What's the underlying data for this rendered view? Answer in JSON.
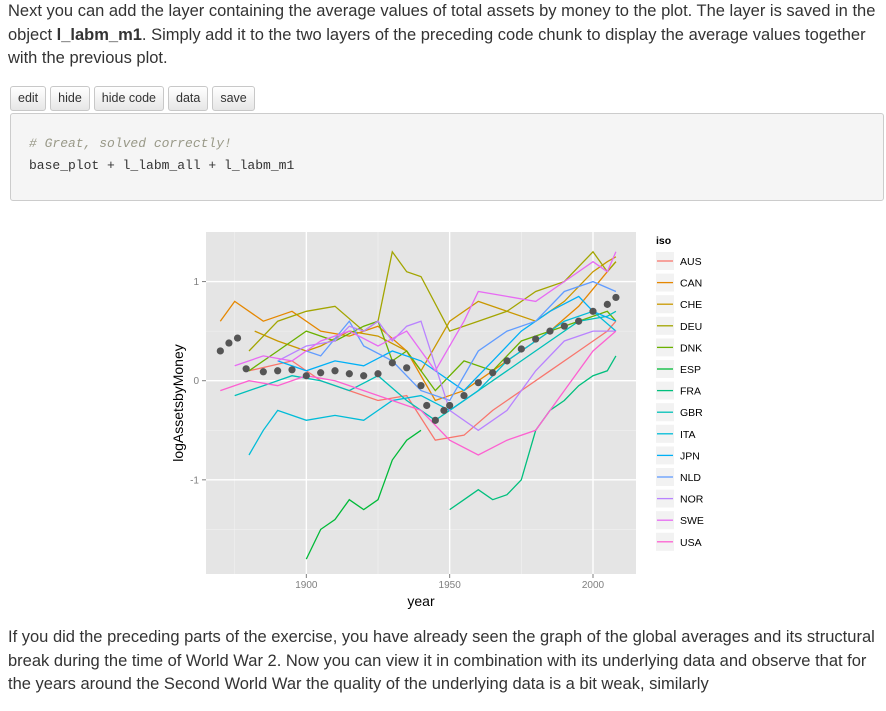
{
  "intro": {
    "before": "Next you can add the layer containing the average values of total assets by money to the plot. The layer is saved in the object ",
    "object_name": "l_labm_m1",
    "after": ". Simply add it to the two layers of the preceding code chunk to display the average values together with the previous plot."
  },
  "toolbar": {
    "edit": "edit",
    "hide": "hide",
    "hide_code": "hide code",
    "data": "data",
    "save": "save"
  },
  "code": {
    "comment": "# Great, solved correctly!",
    "line": "base_plot + l_labm_all + l_labm_m1"
  },
  "outro": {
    "text": "If you did the preceding parts of the exercise, you have already seen the graph of the global averages and its structural break during the time of World War 2. Now you can view it in combination with its underlying data and observe that for the years around the Second World War the quality of the underlying data is a bit weak, similarly"
  },
  "chart_data": {
    "type": "line",
    "xlabel": "year",
    "ylabel": "logAssetsbyMoney",
    "xlim": [
      1865,
      2015
    ],
    "ylim": [
      -1.95,
      1.5
    ],
    "x_ticks": [
      1900,
      1950,
      2000
    ],
    "y_ticks": [
      -1,
      0,
      1
    ],
    "grid": true,
    "background": "#e5e5e5",
    "legend": {
      "title": "iso",
      "position": "right"
    },
    "series": [
      {
        "name": "AUS",
        "color": "#F8766D",
        "points": [
          [
            1880,
            0.1
          ],
          [
            1895,
            0.2
          ],
          [
            1905,
            0.0
          ],
          [
            1915,
            -0.1
          ],
          [
            1925,
            -0.2
          ],
          [
            1935,
            -0.15
          ],
          [
            1945,
            -0.6
          ],
          [
            1955,
            -0.55
          ],
          [
            1965,
            -0.3
          ],
          [
            1975,
            -0.1
          ],
          [
            1985,
            0.1
          ],
          [
            1995,
            0.3
          ],
          [
            2005,
            0.5
          ],
          [
            2008,
            0.6
          ]
        ]
      },
      {
        "name": "CAN",
        "color": "#E58700",
        "points": [
          [
            1870,
            0.6
          ],
          [
            1875,
            0.8
          ],
          [
            1885,
            0.6
          ],
          [
            1895,
            0.7
          ],
          [
            1905,
            0.5
          ],
          [
            1915,
            0.45
          ],
          [
            1925,
            0.55
          ],
          [
            1935,
            0.3
          ],
          [
            1945,
            -0.2
          ],
          [
            1955,
            -0.1
          ],
          [
            1965,
            0.1
          ],
          [
            1975,
            0.3
          ],
          [
            1985,
            0.5
          ],
          [
            1995,
            0.75
          ],
          [
            2005,
            1.1
          ],
          [
            2008,
            1.2
          ]
        ]
      },
      {
        "name": "CHE",
        "color": "#C99800",
        "points": [
          [
            1882,
            0.5
          ],
          [
            1890,
            0.4
          ],
          [
            1900,
            0.3
          ],
          [
            1905,
            0.35
          ],
          [
            1915,
            0.5
          ],
          [
            1925,
            0.45
          ],
          [
            1935,
            0.3
          ],
          [
            1940,
            0.1
          ],
          [
            1950,
            0.6
          ],
          [
            1960,
            0.8
          ],
          [
            1970,
            0.7
          ],
          [
            1980,
            0.6
          ],
          [
            1990,
            0.8
          ],
          [
            2000,
            1.1
          ],
          [
            2005,
            1.2
          ],
          [
            2008,
            1.25
          ]
        ]
      },
      {
        "name": "DEU",
        "color": "#A3A500",
        "points": [
          [
            1880,
            0.3
          ],
          [
            1890,
            0.6
          ],
          [
            1900,
            0.7
          ],
          [
            1910,
            0.75
          ],
          [
            1920,
            0.5
          ],
          [
            1925,
            0.6
          ],
          [
            1930,
            1.3
          ],
          [
            1935,
            1.1
          ],
          [
            1940,
            1.05
          ],
          [
            1950,
            0.5
          ],
          [
            1960,
            0.6
          ],
          [
            1970,
            0.7
          ],
          [
            1980,
            0.9
          ],
          [
            1990,
            1.0
          ],
          [
            2000,
            1.3
          ],
          [
            2005,
            1.1
          ],
          [
            2008,
            1.2
          ]
        ]
      },
      {
        "name": "DNK",
        "color": "#6BB100",
        "points": [
          [
            1880,
            0.1
          ],
          [
            1890,
            0.3
          ],
          [
            1900,
            0.5
          ],
          [
            1910,
            0.4
          ],
          [
            1920,
            0.55
          ],
          [
            1925,
            0.6
          ],
          [
            1930,
            0.2
          ],
          [
            1935,
            0.3
          ],
          [
            1945,
            -0.1
          ],
          [
            1955,
            0.2
          ],
          [
            1965,
            0.1
          ],
          [
            1975,
            0.4
          ],
          [
            1985,
            0.5
          ],
          [
            1995,
            0.6
          ],
          [
            2005,
            0.7
          ],
          [
            2008,
            0.6
          ]
        ]
      },
      {
        "name": "ESP",
        "color": "#00BA38",
        "points": [
          [
            1900,
            -1.8
          ],
          [
            1905,
            -1.5
          ],
          [
            1910,
            -1.4
          ],
          [
            1915,
            -1.2
          ],
          [
            1920,
            -1.3
          ],
          [
            1925,
            -1.2
          ],
          [
            1930,
            -0.8
          ],
          [
            1935,
            -0.6
          ],
          [
            1940,
            -0.5
          ]
        ]
      },
      {
        "name": "FRA",
        "color": "#00BF7D",
        "points": [
          [
            1950,
            -1.3
          ],
          [
            1955,
            -1.2
          ],
          [
            1960,
            -1.1
          ],
          [
            1965,
            -1.2
          ],
          [
            1970,
            -1.15
          ],
          [
            1975,
            -1.0
          ],
          [
            1980,
            -0.5
          ],
          [
            1985,
            -0.3
          ],
          [
            1990,
            -0.2
          ],
          [
            1995,
            -0.05
          ],
          [
            2000,
            0.05
          ],
          [
            2005,
            0.1
          ],
          [
            2008,
            0.25
          ]
        ]
      },
      {
        "name": "GBR",
        "color": "#00C0B8",
        "points": [
          [
            1875,
            -0.15
          ],
          [
            1885,
            -0.05
          ],
          [
            1895,
            0.05
          ],
          [
            1905,
            0.0
          ],
          [
            1915,
            -0.1
          ],
          [
            1925,
            0.05
          ],
          [
            1935,
            -0.2
          ],
          [
            1945,
            -0.4
          ],
          [
            1955,
            -0.2
          ],
          [
            1965,
            0.0
          ],
          [
            1975,
            0.2
          ],
          [
            1985,
            0.4
          ],
          [
            1995,
            0.6
          ],
          [
            2005,
            0.65
          ],
          [
            2008,
            0.7
          ]
        ]
      },
      {
        "name": "ITA",
        "color": "#00BCD8",
        "points": [
          [
            1880,
            -0.75
          ],
          [
            1885,
            -0.5
          ],
          [
            1890,
            -0.3
          ],
          [
            1900,
            -0.4
          ],
          [
            1910,
            -0.35
          ],
          [
            1920,
            -0.4
          ],
          [
            1930,
            -0.2
          ],
          [
            1940,
            -0.15
          ],
          [
            1950,
            -0.3
          ],
          [
            1960,
            -0.1
          ],
          [
            1970,
            0.2
          ],
          [
            1980,
            0.4
          ],
          [
            1990,
            0.6
          ],
          [
            2000,
            0.7
          ],
          [
            2008,
            0.5
          ]
        ]
      },
      {
        "name": "JPN",
        "color": "#00B0F6",
        "points": [
          [
            1890,
            0.2
          ],
          [
            1900,
            0.1
          ],
          [
            1910,
            0.2
          ],
          [
            1920,
            0.15
          ],
          [
            1930,
            0.3
          ],
          [
            1940,
            0.2
          ],
          [
            1955,
            -0.1
          ],
          [
            1965,
            0.2
          ],
          [
            1975,
            0.5
          ],
          [
            1985,
            0.7
          ],
          [
            1995,
            0.85
          ],
          [
            2000,
            0.7
          ],
          [
            2008,
            0.6
          ]
        ]
      },
      {
        "name": "NLD",
        "color": "#619CFF",
        "points": [
          [
            1900,
            0.3
          ],
          [
            1905,
            0.25
          ],
          [
            1915,
            0.6
          ],
          [
            1920,
            0.35
          ],
          [
            1930,
            0.2
          ],
          [
            1940,
            -0.1
          ],
          [
            1950,
            -0.2
          ],
          [
            1960,
            0.3
          ],
          [
            1970,
            0.5
          ],
          [
            1980,
            0.6
          ],
          [
            1990,
            0.9
          ],
          [
            2000,
            1.0
          ],
          [
            2008,
            0.9
          ]
        ]
      },
      {
        "name": "NOR",
        "color": "#B983FF",
        "points": [
          [
            1890,
            0.2
          ],
          [
            1900,
            0.35
          ],
          [
            1910,
            0.4
          ],
          [
            1915,
            0.55
          ],
          [
            1920,
            0.5
          ],
          [
            1925,
            0.6
          ],
          [
            1930,
            0.4
          ],
          [
            1935,
            0.55
          ],
          [
            1940,
            0.6
          ],
          [
            1950,
            -0.3
          ],
          [
            1960,
            -0.5
          ],
          [
            1970,
            -0.3
          ],
          [
            1980,
            0.1
          ],
          [
            1990,
            0.4
          ],
          [
            2000,
            0.5
          ],
          [
            2008,
            0.5
          ]
        ]
      },
      {
        "name": "SWE",
        "color": "#E76BF3",
        "points": [
          [
            1875,
            0.15
          ],
          [
            1885,
            0.25
          ],
          [
            1895,
            0.2
          ],
          [
            1905,
            0.4
          ],
          [
            1915,
            0.5
          ],
          [
            1925,
            0.35
          ],
          [
            1935,
            0.5
          ],
          [
            1945,
            0.1
          ],
          [
            1955,
            0.6
          ],
          [
            1960,
            0.9
          ],
          [
            1970,
            0.85
          ],
          [
            1980,
            0.8
          ],
          [
            1990,
            1.0
          ],
          [
            2000,
            1.2
          ],
          [
            2005,
            1.1
          ],
          [
            2008,
            1.3
          ]
        ]
      },
      {
        "name": "USA",
        "color": "#FD61D1",
        "points": [
          [
            1870,
            -0.1
          ],
          [
            1880,
            0.0
          ],
          [
            1890,
            -0.05
          ],
          [
            1900,
            0.05
          ],
          [
            1910,
            0.0
          ],
          [
            1920,
            -0.1
          ],
          [
            1930,
            -0.2
          ],
          [
            1940,
            -0.3
          ],
          [
            1950,
            -0.6
          ],
          [
            1960,
            -0.75
          ],
          [
            1970,
            -0.6
          ],
          [
            1980,
            -0.5
          ],
          [
            1990,
            -0.1
          ],
          [
            2000,
            0.3
          ],
          [
            2008,
            0.5
          ]
        ]
      }
    ],
    "average": {
      "color": "#555555",
      "points": [
        [
          1870,
          0.3
        ],
        [
          1873,
          0.38
        ],
        [
          1876,
          0.43
        ],
        [
          1879,
          0.12
        ],
        [
          1885,
          0.09
        ],
        [
          1890,
          0.1
        ],
        [
          1895,
          0.11
        ],
        [
          1900,
          0.05
        ],
        [
          1905,
          0.08
        ],
        [
          1910,
          0.1
        ],
        [
          1915,
          0.07
        ],
        [
          1920,
          0.05
        ],
        [
          1925,
          0.07
        ],
        [
          1930,
          0.18
        ],
        [
          1935,
          0.13
        ],
        [
          1940,
          -0.05
        ],
        [
          1942,
          -0.25
        ],
        [
          1945,
          -0.4
        ],
        [
          1948,
          -0.3
        ],
        [
          1950,
          -0.25
        ],
        [
          1955,
          -0.15
        ],
        [
          1960,
          -0.02
        ],
        [
          1965,
          0.08
        ],
        [
          1970,
          0.2
        ],
        [
          1975,
          0.32
        ],
        [
          1980,
          0.42
        ],
        [
          1985,
          0.5
        ],
        [
          1990,
          0.55
        ],
        [
          1995,
          0.6
        ],
        [
          2000,
          0.7
        ],
        [
          2005,
          0.77
        ],
        [
          2008,
          0.84
        ]
      ]
    }
  }
}
